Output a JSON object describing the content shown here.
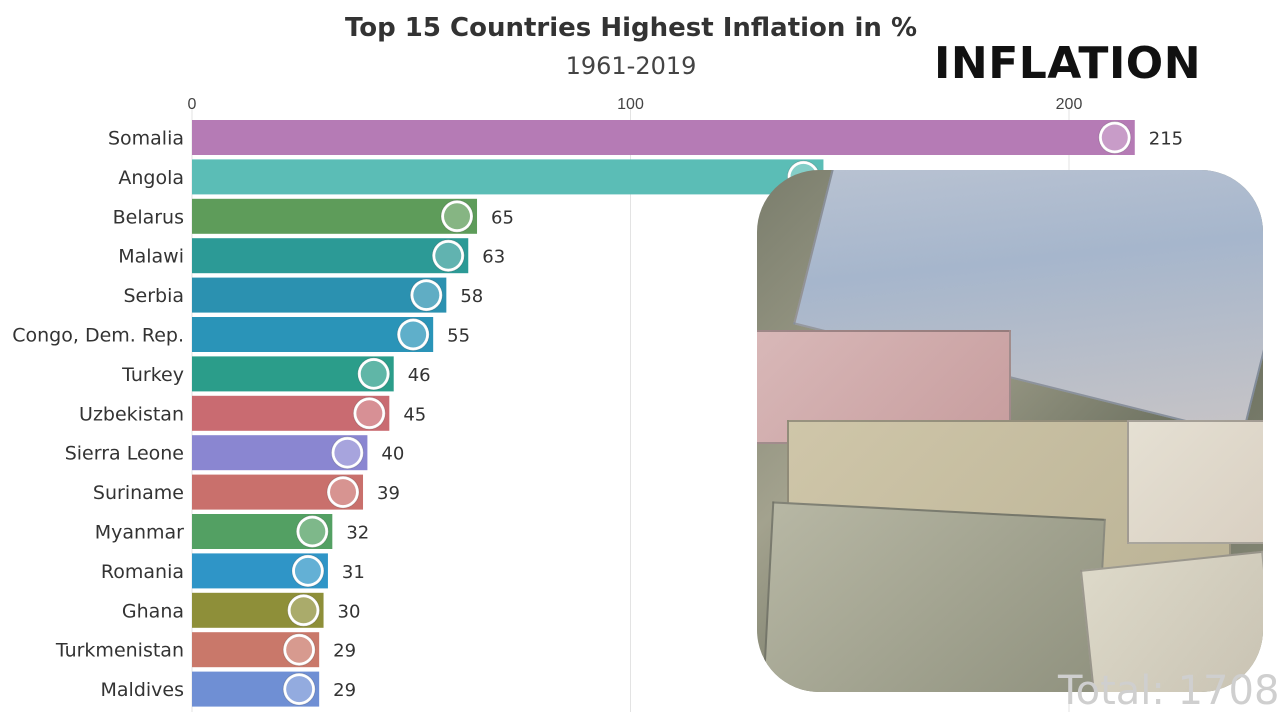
{
  "chart_data": {
    "type": "bar",
    "orientation": "horizontal",
    "title": "Top 15 Countries Highest Inflation in %",
    "subtitle": "1961-2019",
    "xlim": [
      0,
      200
    ],
    "xticks": [
      0,
      100,
      200
    ],
    "grid": true,
    "categories": [
      "Somalia",
      "Angola",
      "Belarus",
      "Malawi",
      "Serbia",
      "Congo, Dem. Rep.",
      "Turkey",
      "Uzbekistan",
      "Sierra Leone",
      "Suriname",
      "Myanmar",
      "Romania",
      "Ghana",
      "Turkmenistan",
      "Maldives"
    ],
    "values": [
      215,
      144,
      65,
      63,
      58,
      55,
      46,
      45,
      40,
      39,
      32,
      31,
      30,
      29,
      29
    ],
    "value_labels": [
      "215",
      "",
      "65",
      "63",
      "58",
      "55",
      "46",
      "45",
      "40",
      "39",
      "32",
      "31",
      "30",
      "29",
      "29"
    ],
    "colors": [
      "#b57bb5",
      "#5bbdb6",
      "#5e9c5a",
      "#2c9a96",
      "#2b91b0",
      "#2a94b8",
      "#2b9d8a",
      "#c96b71",
      "#8a86d1",
      "#c9706c",
      "#53a063",
      "#2f95c7",
      "#8e8f39",
      "#c9786a",
      "#6f8fd4"
    ]
  },
  "overlay": {
    "heading": "INFLATION",
    "total_text": "Total: 1708"
  },
  "flag_icons": [
    "somalia-flag-icon",
    "angola-flag-icon",
    "belarus-flag-icon",
    "malawi-flag-icon",
    "serbia-flag-icon",
    "congo-dem-rep-flag-icon",
    "turkey-flag-icon",
    "uzbekistan-flag-icon",
    "sierra-leone-flag-icon",
    "suriname-flag-icon",
    "myanmar-flag-icon",
    "romania-flag-icon",
    "ghana-flag-icon",
    "turkmenistan-flag-icon",
    "maldives-flag-icon"
  ]
}
